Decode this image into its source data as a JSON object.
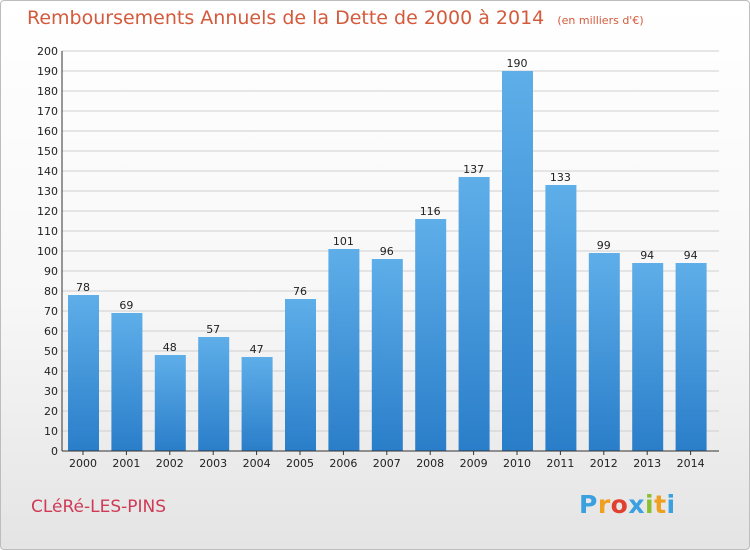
{
  "title": "Remboursements Annuels de la Dette de 2000 à 2014",
  "subtitle": "(en milliers d'€)",
  "commune": "CLéRé-LES-PINS",
  "logo": {
    "text": "Proxiti",
    "letter_colors": [
      "#3aa0e0",
      "#f0a020",
      "#e04030",
      "#3aa0e0",
      "#8ac030",
      "#f0a020",
      "#3aa0e0"
    ]
  },
  "colors": {
    "bar_top": "#5eaee9",
    "bar_bottom": "#2a7ec9",
    "grid": "#cfcfcf",
    "axis": "#333333",
    "text": "#222222",
    "title": "#d45a3c",
    "commune": "#cf3a57"
  },
  "chart_data": {
    "type": "bar",
    "categories": [
      "2000",
      "2001",
      "2002",
      "2003",
      "2004",
      "2005",
      "2006",
      "2007",
      "2008",
      "2009",
      "2010",
      "2011",
      "2012",
      "2013",
      "2014"
    ],
    "values": [
      78,
      69,
      48,
      57,
      47,
      76,
      101,
      96,
      116,
      137,
      190,
      133,
      99,
      94,
      94
    ],
    "ylim": [
      0,
      200
    ],
    "ytick_step": 10,
    "grid": true,
    "data_labels": true
  }
}
